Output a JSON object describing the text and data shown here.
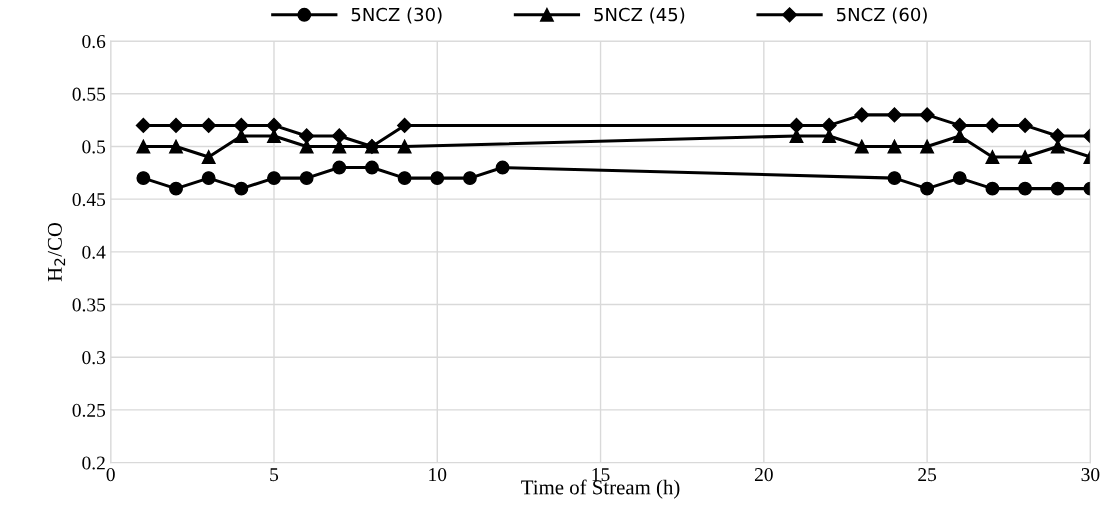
{
  "chart_data": {
    "type": "line",
    "xlabel": "Time of Stream (h)",
    "ylabel": "H$_{2}$/CO",
    "xlim": [
      0,
      30
    ],
    "xticks": [
      0,
      5,
      10,
      15,
      20,
      25,
      30
    ],
    "ylim": [
      0.2,
      0.6
    ],
    "yticks": [
      0.2,
      0.25,
      0.3,
      0.35,
      0.4,
      0.45,
      0.5,
      0.55,
      0.6
    ],
    "grid": true,
    "legend": "top",
    "line_style": "solid",
    "series": [
      {
        "name": "5NCZ (30)",
        "color": "#000000",
        "marker": "circle",
        "x": [
          1,
          2,
          3,
          4,
          5,
          6,
          7,
          8,
          9,
          10,
          11,
          12,
          24,
          25,
          26,
          27,
          28,
          29,
          30
        ],
        "values": [
          0.47,
          0.46,
          0.47,
          0.46,
          0.47,
          0.47,
          0.48,
          0.48,
          0.47,
          0.47,
          0.47,
          0.48,
          0.47,
          0.46,
          0.47,
          0.46,
          0.46,
          0.46,
          0.46
        ]
      },
      {
        "name": "5NCZ (45)",
        "color": "#000000",
        "marker": "triangle",
        "x": [
          1,
          2,
          3,
          4,
          5,
          6,
          7,
          8,
          9,
          21,
          22,
          23,
          24,
          25,
          26,
          27,
          28,
          29,
          30
        ],
        "values": [
          0.5,
          0.5,
          0.49,
          0.51,
          0.51,
          0.5,
          0.5,
          0.5,
          0.5,
          0.51,
          0.51,
          0.5,
          0.5,
          0.5,
          0.51,
          0.49,
          0.49,
          0.5,
          0.49
        ]
      },
      {
        "name": "5NCZ (60)",
        "color": "#000000",
        "marker": "diamond",
        "x": [
          1,
          2,
          3,
          4,
          5,
          6,
          7,
          8,
          9,
          21,
          22,
          23,
          24,
          25,
          26,
          27,
          28,
          29,
          30
        ],
        "values": [
          0.52,
          0.52,
          0.52,
          0.52,
          0.52,
          0.51,
          0.51,
          0.5,
          0.52,
          0.52,
          0.52,
          0.53,
          0.53,
          0.53,
          0.52,
          0.52,
          0.52,
          0.51,
          0.51
        ]
      }
    ]
  }
}
